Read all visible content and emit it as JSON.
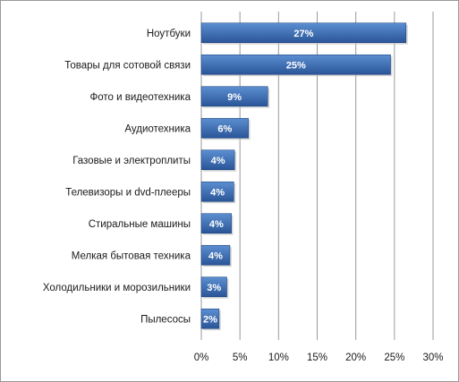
{
  "chart_data": {
    "type": "bar",
    "orientation": "horizontal",
    "categories": [
      "Ноутбуки",
      "Товары для сотовой связи",
      "Фото и видеотехника",
      "Аудиотехника",
      "Газовые и электроплиты",
      "Телевизоры и dvd-плееры",
      "Стиральные машины",
      "Мелкая бытовая техника",
      "Холодильники и морозильники",
      "Пылесосы"
    ],
    "values": [
      26.5,
      24.5,
      8.6,
      6.1,
      4.3,
      4.2,
      3.9,
      3.7,
      3.3,
      2.3
    ],
    "data_labels": [
      "27%",
      "25%",
      "9%",
      "6%",
      "4%",
      "4%",
      "4%",
      "4%",
      "3%",
      "2%"
    ],
    "xlim": [
      0,
      30
    ],
    "x_ticks": [
      0,
      5,
      10,
      15,
      20,
      25,
      30
    ],
    "x_tick_labels": [
      "0%",
      "5%",
      "10%",
      "15%",
      "20%",
      "25%",
      "30%"
    ],
    "title": "",
    "xlabel": "",
    "ylabel": "",
    "grid": "vertical",
    "legend": "none",
    "colors": {
      "bar_top": "#5b8fd1",
      "bar_bottom": "#2a5598",
      "bar_edge": "#1f4680",
      "grid": "#9a9a9a"
    }
  }
}
